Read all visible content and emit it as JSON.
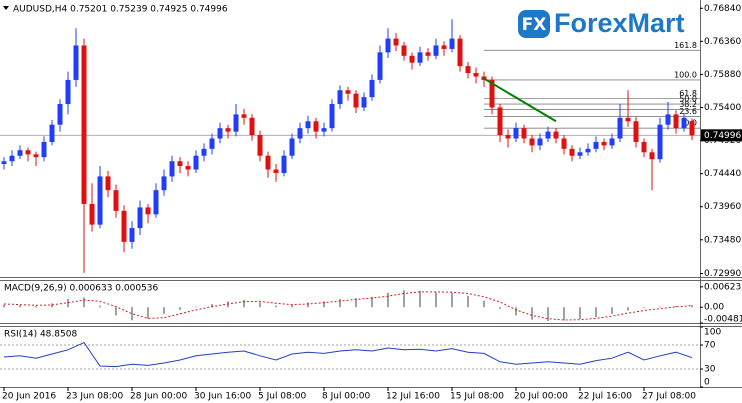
{
  "chart_data": {
    "type": "candlestick",
    "title": "AUDUSD,H4  0.75201 0.75239 0.74925 0.74996",
    "up_color": "#1f3cff",
    "down_color": "#e01010",
    "ylim": [
      0.7294,
      0.7696
    ],
    "yticks": [
      {
        "value": 0.7684,
        "label": "0.76840"
      },
      {
        "value": 0.7636,
        "label": "0.76360"
      },
      {
        "value": 0.7588,
        "label": "0.75880"
      },
      {
        "value": 0.754,
        "label": "0.75400"
      },
      {
        "value": 0.7492,
        "label": "0.74920"
      },
      {
        "value": 0.7444,
        "label": "0.74440"
      },
      {
        "value": 0.7396,
        "label": "0.73960"
      },
      {
        "value": 0.7348,
        "label": "0.73480"
      },
      {
        "value": 0.7299,
        "label": "0.72990"
      }
    ],
    "last_price": 0.74996,
    "categories": [
      "20 Jun 2016",
      null,
      null,
      null,
      null,
      null,
      null,
      null,
      "23 Jun 08:00",
      null,
      null,
      null,
      null,
      null,
      null,
      null,
      "28 Jun 00:00",
      null,
      null,
      null,
      null,
      null,
      null,
      null,
      "30 Jun 16:00",
      null,
      null,
      null,
      null,
      null,
      null,
      null,
      "5 Jul 08:00",
      null,
      null,
      null,
      null,
      null,
      null,
      null,
      "8 Jul 00:00",
      null,
      null,
      null,
      null,
      null,
      null,
      null,
      "12 Jul 16:00",
      null,
      null,
      null,
      null,
      null,
      null,
      null,
      "15 Jul 08:00",
      null,
      null,
      null,
      null,
      null,
      null,
      null,
      "20 Jul 00:00",
      null,
      null,
      null,
      null,
      null,
      null,
      null,
      "22 Jul 16:00",
      null,
      null,
      null,
      null,
      null,
      null,
      null,
      "27 Jul 08:00",
      null,
      null,
      null,
      null,
      null,
      null
    ],
    "ohlc": [
      [
        0.7458,
        0.7468,
        0.745,
        0.7462
      ],
      [
        0.7462,
        0.7478,
        0.7455,
        0.747
      ],
      [
        0.747,
        0.7485,
        0.7465,
        0.7478
      ],
      [
        0.7478,
        0.7482,
        0.7462,
        0.7472
      ],
      [
        0.7472,
        0.7476,
        0.7455,
        0.7468
      ],
      [
        0.7468,
        0.7498,
        0.7462,
        0.749
      ],
      [
        0.749,
        0.7522,
        0.7485,
        0.7515
      ],
      [
        0.7515,
        0.7552,
        0.7505,
        0.7545
      ],
      [
        0.7545,
        0.7592,
        0.753,
        0.758
      ],
      [
        0.758,
        0.7655,
        0.757,
        0.763
      ],
      [
        0.763,
        0.764,
        0.73,
        0.74
      ],
      [
        0.74,
        0.743,
        0.736,
        0.737
      ],
      [
        0.737,
        0.7455,
        0.7365,
        0.744
      ],
      [
        0.744,
        0.7448,
        0.741,
        0.742
      ],
      [
        0.742,
        0.7428,
        0.738,
        0.739
      ],
      [
        0.739,
        0.7398,
        0.733,
        0.7345
      ],
      [
        0.7345,
        0.7375,
        0.7335,
        0.7365
      ],
      [
        0.7365,
        0.7405,
        0.7355,
        0.7395
      ],
      [
        0.7395,
        0.74,
        0.7372,
        0.7385
      ],
      [
        0.7385,
        0.743,
        0.738,
        0.742
      ],
      [
        0.742,
        0.745,
        0.7412,
        0.744
      ],
      [
        0.744,
        0.747,
        0.7432,
        0.7462
      ],
      [
        0.7462,
        0.7468,
        0.7445,
        0.7455
      ],
      [
        0.7455,
        0.7462,
        0.744,
        0.745
      ],
      [
        0.745,
        0.7478,
        0.7445,
        0.747
      ],
      [
        0.747,
        0.7488,
        0.7462,
        0.748
      ],
      [
        0.748,
        0.7502,
        0.7472,
        0.7495
      ],
      [
        0.7495,
        0.7518,
        0.7488,
        0.751
      ],
      [
        0.751,
        0.7515,
        0.7495,
        0.7505
      ],
      [
        0.7505,
        0.7545,
        0.7498,
        0.753
      ],
      [
        0.753,
        0.7538,
        0.7515,
        0.7525
      ],
      [
        0.7525,
        0.753,
        0.7492,
        0.75
      ],
      [
        0.75,
        0.7506,
        0.7462,
        0.747
      ],
      [
        0.747,
        0.7476,
        0.7438,
        0.745
      ],
      [
        0.745,
        0.7458,
        0.7432,
        0.7445
      ],
      [
        0.7445,
        0.7478,
        0.744,
        0.747
      ],
      [
        0.747,
        0.7502,
        0.7465,
        0.7495
      ],
      [
        0.7495,
        0.7518,
        0.7488,
        0.751
      ],
      [
        0.751,
        0.7528,
        0.7502,
        0.752
      ],
      [
        0.752,
        0.7525,
        0.7495,
        0.7505
      ],
      [
        0.7505,
        0.7518,
        0.7498,
        0.751
      ],
      [
        0.751,
        0.7552,
        0.7505,
        0.7545
      ],
      [
        0.7545,
        0.7572,
        0.7538,
        0.7565
      ],
      [
        0.7565,
        0.757,
        0.755,
        0.756
      ],
      [
        0.756,
        0.7565,
        0.7532,
        0.754
      ],
      [
        0.754,
        0.7562,
        0.7535,
        0.7555
      ],
      [
        0.7555,
        0.7588,
        0.755,
        0.758
      ],
      [
        0.758,
        0.763,
        0.7575,
        0.762
      ],
      [
        0.762,
        0.7655,
        0.7612,
        0.764
      ],
      [
        0.764,
        0.7648,
        0.7622,
        0.763
      ],
      [
        0.763,
        0.7635,
        0.7608,
        0.7615
      ],
      [
        0.7615,
        0.762,
        0.7595,
        0.7605
      ],
      [
        0.7605,
        0.7628,
        0.76,
        0.762
      ],
      [
        0.762,
        0.7626,
        0.7608,
        0.7615
      ],
      [
        0.7615,
        0.764,
        0.761,
        0.763
      ],
      [
        0.763,
        0.7636,
        0.7615,
        0.7625
      ],
      [
        0.7625,
        0.7668,
        0.762,
        0.764
      ],
      [
        0.764,
        0.7645,
        0.7592,
        0.76
      ],
      [
        0.76,
        0.7606,
        0.7582,
        0.759
      ],
      [
        0.759,
        0.7598,
        0.7575,
        0.7585
      ],
      [
        0.7585,
        0.7592,
        0.757,
        0.758
      ],
      [
        0.758,
        0.7585,
        0.753,
        0.754
      ],
      [
        0.754,
        0.7545,
        0.749,
        0.75
      ],
      [
        0.75,
        0.7508,
        0.7482,
        0.7495
      ],
      [
        0.7495,
        0.7518,
        0.749,
        0.751
      ],
      [
        0.751,
        0.7515,
        0.7488,
        0.7495
      ],
      [
        0.7495,
        0.75,
        0.7475,
        0.7485
      ],
      [
        0.7485,
        0.7502,
        0.7478,
        0.7495
      ],
      [
        0.7495,
        0.7512,
        0.749,
        0.7505
      ],
      [
        0.7505,
        0.751,
        0.7488,
        0.7495
      ],
      [
        0.7495,
        0.75,
        0.7472,
        0.748
      ],
      [
        0.748,
        0.7485,
        0.7462,
        0.747
      ],
      [
        0.747,
        0.7482,
        0.7465,
        0.7475
      ],
      [
        0.7475,
        0.7488,
        0.747,
        0.748
      ],
      [
        0.748,
        0.7498,
        0.7475,
        0.749
      ],
      [
        0.749,
        0.7495,
        0.7478,
        0.7485
      ],
      [
        0.7485,
        0.7502,
        0.748,
        0.7495
      ],
      [
        0.7495,
        0.7545,
        0.749,
        0.7525
      ],
      [
        0.7525,
        0.7565,
        0.7512,
        0.752
      ],
      [
        0.752,
        0.7526,
        0.7482,
        0.749
      ],
      [
        0.749,
        0.7495,
        0.7468,
        0.7475
      ],
      [
        0.7475,
        0.748,
        0.742,
        0.7465
      ],
      [
        0.7465,
        0.7525,
        0.746,
        0.7515
      ],
      [
        0.7515,
        0.7548,
        0.7508,
        0.753
      ],
      [
        0.753,
        0.7536,
        0.7502,
        0.751
      ],
      [
        0.751,
        0.7532,
        0.7505,
        0.7525
      ],
      [
        0.75201,
        0.75239,
        0.74925,
        0.74996
      ]
    ],
    "fibo": {
      "start": 60,
      "color": "#808080",
      "levels": [
        161.8,
        {
          "value": 100,
          "label": "100.0"
        },
        61.8,
        {
          "value": 50,
          "label": "50.0"
        },
        38.2,
        23.6,
        {
          "value": 0,
          "label": "0.0"
        }
      ],
      "prices": [
        0.7623,
        0.758,
        0.7553,
        0.7545,
        0.7537,
        0.7527,
        0.751
      ]
    },
    "trendline": {
      "x": [
        60,
        69
      ],
      "y": [
        0.7582,
        0.752
      ],
      "color": "#008000"
    },
    "logo": {
      "icon": "FX",
      "name": "ForexMart",
      "color": "#1e78c8"
    },
    "indicators": [
      {
        "type": "macd",
        "label": "MACD(9,26,9) 0.000633 0.000536",
        "step": 2,
        "hist_color": "#a0a0a0",
        "signal_color": "#d02020",
        "ylim": [
          -0.004814,
          0.00802
        ],
        "yticks": [
          0.006235,
          {
            "value": 0,
            "label": "0.00"
          },
          -0.004814
        ],
        "histogram": [
          0.0008,
          0.0006,
          0.0004,
          0.0012,
          0.0025,
          0.003,
          0.0005,
          -0.0025,
          -0.004,
          -0.0035,
          -0.002,
          -0.0008,
          0.0002,
          0.001,
          0.0018,
          0.0022,
          0.0015,
          0.0005,
          0.0008,
          0.0015,
          0.0018,
          0.0025,
          0.0028,
          0.0032,
          0.0045,
          0.0052,
          0.005,
          0.0046,
          0.0045,
          0.0035,
          0.002,
          -0.0005,
          -0.0025,
          -0.0038,
          -0.0042,
          -0.004,
          -0.0036,
          -0.003,
          -0.002,
          -0.001,
          -0.0002,
          0.0002,
          0.0004,
          0.000633
        ],
        "signal": [
          0.001,
          0.0008,
          0.0006,
          0.0007,
          0.0014,
          0.0022,
          0.0018,
          0.0002,
          -0.002,
          -0.0034,
          -0.0032,
          -0.002,
          -0.0008,
          0.0002,
          0.001,
          0.0017,
          0.0018,
          0.0012,
          0.0008,
          0.001,
          0.0014,
          0.0019,
          0.0024,
          0.0028,
          0.0034,
          0.0042,
          0.0047,
          0.0047,
          0.0046,
          0.0042,
          0.0032,
          0.0016,
          -0.0008,
          -0.0025,
          -0.0035,
          -0.0039,
          -0.0038,
          -0.0034,
          -0.0027,
          -0.0018,
          -0.001,
          -0.0004,
          0.0001,
          0.000536
        ]
      },
      {
        "type": "rsi",
        "label": "RSI(14) 48.8508",
        "step": 2,
        "color": "#2040c0",
        "levels": [
          70,
          30
        ],
        "ylim": [
          0,
          100
        ],
        "yticks": [
          100,
          70,
          30,
          0
        ],
        "values": [
          50,
          52,
          48,
          55,
          62,
          74,
          35,
          34,
          38,
          36,
          40,
          45,
          52,
          55,
          58,
          60,
          52,
          45,
          55,
          58,
          56,
          60,
          62,
          60,
          65,
          62,
          63,
          60,
          64,
          58,
          56,
          42,
          38,
          40,
          42,
          40,
          38,
          44,
          48,
          58,
          45,
          52,
          58,
          48.8508
        ]
      }
    ]
  }
}
